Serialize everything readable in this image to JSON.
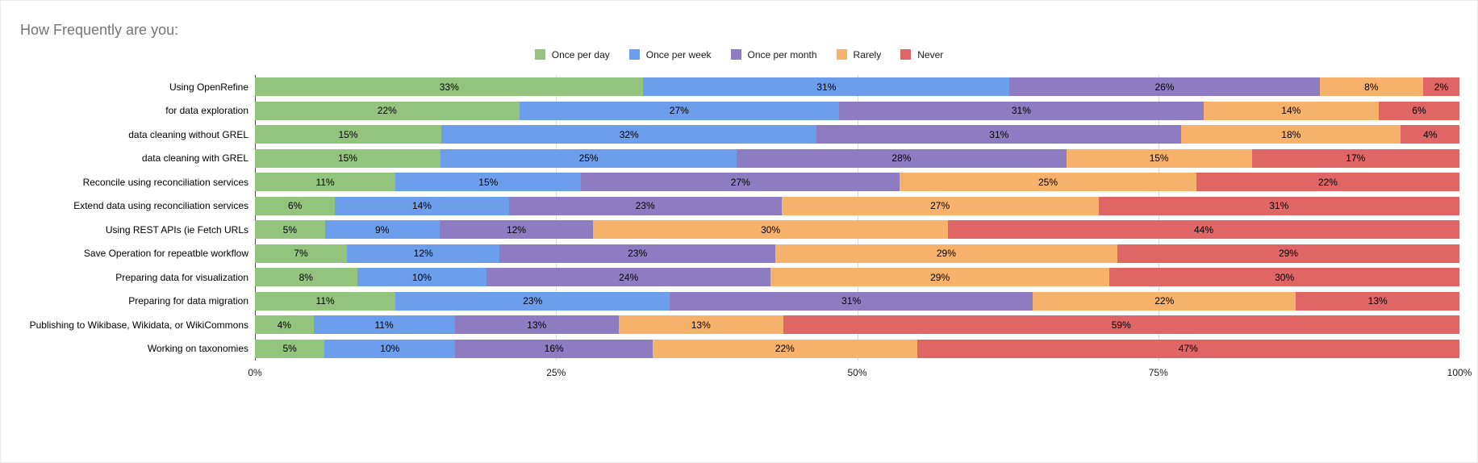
{
  "chart_title": "How Frequently are you:",
  "colors": {
    "title_text": "#757575",
    "axis_baseline": "#4d4d4d",
    "gridline": "#dadada",
    "bar_label_text": "#000000",
    "background": "#ffffff"
  },
  "chart_data": {
    "type": "bar",
    "stacked": true,
    "orientation": "horizontal",
    "title": "How Frequently are you:",
    "legend_position": "top",
    "grid": true,
    "value_suffix": "%",
    "x_axis": {
      "min": 0,
      "max": 100,
      "ticks": [
        "0%",
        "25%",
        "50%",
        "75%",
        "100%"
      ]
    },
    "categories": [
      "Using OpenRefine",
      "for data exploration",
      "data cleaning without GREL",
      "data cleaning with GREL",
      "Reconcile using reconciliation services",
      "Extend data using reconciliation services",
      "Using REST APIs (ie Fetch URLs",
      "Save Operation for repeatble workflow",
      "Preparing data for visualization",
      "Preparing for data migration",
      "Publishing to Wikibase, Wikidata, or WikiCommons",
      "Working on taxonomies"
    ],
    "series": [
      {
        "name": "Once per day",
        "color": "#93c47d",
        "values": [
          33,
          22,
          15,
          15,
          11,
          6,
          5,
          7,
          8,
          11,
          4,
          5
        ]
      },
      {
        "name": "Once per week",
        "color": "#6d9eeb",
        "values": [
          31,
          27,
          32,
          25,
          15,
          14,
          9,
          12,
          10,
          23,
          11,
          10
        ]
      },
      {
        "name": "Once per month",
        "color": "#8e7cc3",
        "values": [
          26,
          31,
          31,
          28,
          27,
          23,
          12,
          23,
          24,
          31,
          13,
          16
        ]
      },
      {
        "name": "Rarely",
        "color": "#f6b26b",
        "values": [
          8,
          14,
          18,
          15,
          25,
          27,
          30,
          29,
          29,
          22,
          13,
          22
        ]
      },
      {
        "name": "Never",
        "color": "#e06666",
        "values": [
          2,
          6,
          4,
          17,
          22,
          31,
          44,
          29,
          30,
          13,
          59,
          47
        ]
      }
    ]
  }
}
